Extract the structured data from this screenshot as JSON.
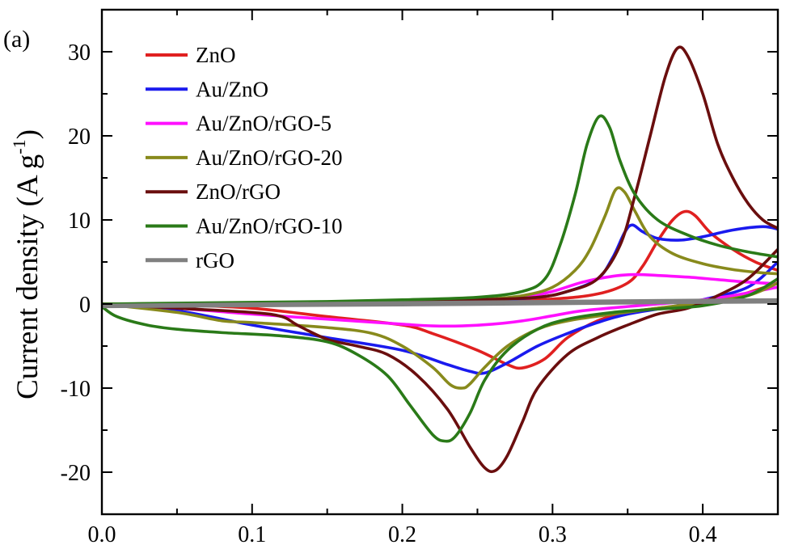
{
  "chart_data": {
    "type": "line",
    "panel_label": "(a)",
    "title": "",
    "xlabel": "",
    "ylabel_main": "Current density (A g",
    "ylabel_sup": "-1",
    "ylabel_close": ")",
    "xlim": [
      0.0,
      0.45
    ],
    "ylim": [
      -25,
      35
    ],
    "x_ticks": [
      0.0,
      0.1,
      0.2,
      0.3,
      0.4
    ],
    "x_tick_labels": [
      "0.0",
      "0.1",
      "0.2",
      "0.3",
      "0.4"
    ],
    "y_ticks": [
      -20,
      -10,
      0,
      10,
      20,
      30
    ],
    "y_tick_labels": [
      "-20",
      "-10",
      "0",
      "10",
      "20",
      "30"
    ],
    "grid": false,
    "legend_position": "top-left",
    "series": [
      {
        "name": "ZnO",
        "color": "#e02020",
        "forward": [
          [
            0,
            0
          ],
          [
            0.05,
            0
          ],
          [
            0.1,
            0.05
          ],
          [
            0.15,
            0.1
          ],
          [
            0.2,
            0.2
          ],
          [
            0.25,
            0.3
          ],
          [
            0.3,
            0.6
          ],
          [
            0.33,
            1.2
          ],
          [
            0.35,
            2.5
          ],
          [
            0.36,
            4.5
          ],
          [
            0.37,
            7.5
          ],
          [
            0.38,
            10
          ],
          [
            0.388,
            11
          ],
          [
            0.395,
            10.5
          ],
          [
            0.405,
            8.5
          ],
          [
            0.42,
            6.5
          ],
          [
            0.435,
            5
          ],
          [
            0.45,
            4
          ]
        ],
        "reverse": [
          [
            0.45,
            2.5
          ],
          [
            0.42,
            0.8
          ],
          [
            0.4,
            0.1
          ],
          [
            0.37,
            -0.5
          ],
          [
            0.35,
            -1
          ],
          [
            0.33,
            -2
          ],
          [
            0.31,
            -4
          ],
          [
            0.295,
            -6.5
          ],
          [
            0.28,
            -7.6
          ],
          [
            0.27,
            -7.2
          ],
          [
            0.25,
            -5.5
          ],
          [
            0.22,
            -3.5
          ],
          [
            0.2,
            -2.5
          ],
          [
            0.15,
            -1.5
          ],
          [
            0.1,
            -0.5
          ],
          [
            0.05,
            -0.1
          ],
          [
            0,
            0
          ]
        ]
      },
      {
        "name": "Au/ZnO",
        "color": "#1a1aee",
        "forward": [
          [
            0,
            0
          ],
          [
            0.05,
            0
          ],
          [
            0.1,
            0.05
          ],
          [
            0.15,
            0.1
          ],
          [
            0.2,
            0.2
          ],
          [
            0.25,
            0.4
          ],
          [
            0.29,
            0.8
          ],
          [
            0.31,
            1.5
          ],
          [
            0.33,
            3
          ],
          [
            0.34,
            5.5
          ],
          [
            0.348,
            8.5
          ],
          [
            0.353,
            9.4
          ],
          [
            0.36,
            8.6
          ],
          [
            0.37,
            7.8
          ],
          [
            0.385,
            7.6
          ],
          [
            0.4,
            8
          ],
          [
            0.42,
            8.8
          ],
          [
            0.44,
            9.2
          ],
          [
            0.45,
            8.9
          ]
        ],
        "reverse": [
          [
            0.45,
            5
          ],
          [
            0.43,
            2
          ],
          [
            0.4,
            0.5
          ],
          [
            0.38,
            -0.3
          ],
          [
            0.35,
            -1.2
          ],
          [
            0.33,
            -2.2
          ],
          [
            0.31,
            -3.5
          ],
          [
            0.29,
            -5
          ],
          [
            0.27,
            -7
          ],
          [
            0.255,
            -8.2
          ],
          [
            0.245,
            -8
          ],
          [
            0.23,
            -7.2
          ],
          [
            0.2,
            -5.5
          ],
          [
            0.15,
            -4
          ],
          [
            0.1,
            -2.5
          ],
          [
            0.05,
            -0.8
          ],
          [
            0,
            0
          ]
        ]
      },
      {
        "name": "Au/ZnO/rGO-5",
        "color": "#ff10ff",
        "forward": [
          [
            0,
            0
          ],
          [
            0.05,
            0.05
          ],
          [
            0.1,
            0.1
          ],
          [
            0.15,
            0.2
          ],
          [
            0.2,
            0.3
          ],
          [
            0.25,
            0.5
          ],
          [
            0.28,
            0.8
          ],
          [
            0.3,
            1.5
          ],
          [
            0.32,
            2.6
          ],
          [
            0.34,
            3.3
          ],
          [
            0.355,
            3.5
          ],
          [
            0.37,
            3.4
          ],
          [
            0.39,
            3.2
          ],
          [
            0.41,
            2.9
          ],
          [
            0.43,
            2.6
          ],
          [
            0.45,
            2.4
          ]
        ],
        "reverse": [
          [
            0.45,
            2
          ],
          [
            0.42,
            1
          ],
          [
            0.4,
            0.5
          ],
          [
            0.37,
            0
          ],
          [
            0.35,
            -0.3
          ],
          [
            0.32,
            -0.8
          ],
          [
            0.3,
            -1.4
          ],
          [
            0.28,
            -2
          ],
          [
            0.26,
            -2.4
          ],
          [
            0.24,
            -2.6
          ],
          [
            0.22,
            -2.6
          ],
          [
            0.2,
            -2.4
          ],
          [
            0.15,
            -1.8
          ],
          [
            0.1,
            -1.2
          ],
          [
            0.05,
            -0.5
          ],
          [
            0,
            0
          ]
        ]
      },
      {
        "name": "Au/ZnO/rGO-20",
        "color": "#888a1c",
        "forward": [
          [
            0,
            0
          ],
          [
            0.05,
            0.05
          ],
          [
            0.1,
            0.1
          ],
          [
            0.15,
            0.2
          ],
          [
            0.2,
            0.3
          ],
          [
            0.25,
            0.5
          ],
          [
            0.28,
            1
          ],
          [
            0.3,
            2
          ],
          [
            0.315,
            4
          ],
          [
            0.325,
            6.5
          ],
          [
            0.335,
            10.5
          ],
          [
            0.342,
            13.6
          ],
          [
            0.348,
            13.3
          ],
          [
            0.355,
            11
          ],
          [
            0.365,
            8
          ],
          [
            0.38,
            6
          ],
          [
            0.4,
            4.8
          ],
          [
            0.42,
            4.1
          ],
          [
            0.44,
            3.7
          ],
          [
            0.45,
            3.6
          ]
        ],
        "reverse": [
          [
            0.45,
            2.5
          ],
          [
            0.43,
            1
          ],
          [
            0.4,
            0.2
          ],
          [
            0.37,
            -0.5
          ],
          [
            0.34,
            -1.2
          ],
          [
            0.31,
            -2
          ],
          [
            0.29,
            -3
          ],
          [
            0.27,
            -5
          ],
          [
            0.255,
            -7.5
          ],
          [
            0.245,
            -9.5
          ],
          [
            0.24,
            -10
          ],
          [
            0.232,
            -9.6
          ],
          [
            0.22,
            -7.5
          ],
          [
            0.2,
            -5
          ],
          [
            0.18,
            -3.5
          ],
          [
            0.15,
            -2.8
          ],
          [
            0.1,
            -2.2
          ],
          [
            0.08,
            -2
          ],
          [
            0.05,
            -1
          ],
          [
            0,
            0
          ]
        ]
      },
      {
        "name": "ZnO/rGO",
        "color": "#6a0e0e",
        "forward": [
          [
            0,
            0
          ],
          [
            0.05,
            0.05
          ],
          [
            0.1,
            0.1
          ],
          [
            0.15,
            0.2
          ],
          [
            0.2,
            0.3
          ],
          [
            0.25,
            0.5
          ],
          [
            0.29,
            0.8
          ],
          [
            0.31,
            1.5
          ],
          [
            0.33,
            3
          ],
          [
            0.345,
            7
          ],
          [
            0.355,
            13
          ],
          [
            0.365,
            20
          ],
          [
            0.375,
            27
          ],
          [
            0.383,
            30.4
          ],
          [
            0.39,
            29.5
          ],
          [
            0.4,
            25
          ],
          [
            0.41,
            19
          ],
          [
            0.42,
            15
          ],
          [
            0.43,
            12
          ],
          [
            0.44,
            10
          ],
          [
            0.45,
            9
          ]
        ],
        "reverse": [
          [
            0.45,
            6.5
          ],
          [
            0.43,
            3
          ],
          [
            0.41,
            1
          ],
          [
            0.39,
            -0.5
          ],
          [
            0.37,
            -1.2
          ],
          [
            0.35,
            -2.5
          ],
          [
            0.33,
            -4
          ],
          [
            0.31,
            -6
          ],
          [
            0.29,
            -10
          ],
          [
            0.28,
            -14
          ],
          [
            0.27,
            -18
          ],
          [
            0.262,
            -19.8
          ],
          [
            0.255,
            -19.5
          ],
          [
            0.245,
            -17
          ],
          [
            0.23,
            -12.5
          ],
          [
            0.21,
            -8.5
          ],
          [
            0.19,
            -6
          ],
          [
            0.17,
            -5
          ],
          [
            0.15,
            -4.2
          ],
          [
            0.13,
            -2.5
          ],
          [
            0.12,
            -1.5
          ],
          [
            0.1,
            -1
          ],
          [
            0.05,
            -0.5
          ],
          [
            0,
            0
          ]
        ]
      },
      {
        "name": "Au/ZnO/rGO-10",
        "color": "#2a7a18",
        "forward": [
          [
            0,
            0
          ],
          [
            0.05,
            0.1
          ],
          [
            0.1,
            0.2
          ],
          [
            0.15,
            0.3
          ],
          [
            0.2,
            0.5
          ],
          [
            0.25,
            0.8
          ],
          [
            0.28,
            1.5
          ],
          [
            0.295,
            3
          ],
          [
            0.305,
            7
          ],
          [
            0.315,
            13
          ],
          [
            0.323,
            19
          ],
          [
            0.331,
            22.3
          ],
          [
            0.338,
            21
          ],
          [
            0.345,
            17
          ],
          [
            0.355,
            13
          ],
          [
            0.37,
            10
          ],
          [
            0.39,
            8.2
          ],
          [
            0.41,
            7
          ],
          [
            0.43,
            6.2
          ],
          [
            0.45,
            5.6
          ]
        ],
        "reverse": [
          [
            0.45,
            3
          ],
          [
            0.43,
            1
          ],
          [
            0.4,
            -0.2
          ],
          [
            0.37,
            -0.6
          ],
          [
            0.34,
            -1
          ],
          [
            0.31,
            -1.8
          ],
          [
            0.29,
            -3
          ],
          [
            0.27,
            -5.5
          ],
          [
            0.255,
            -9
          ],
          [
            0.245,
            -13
          ],
          [
            0.235,
            -15.8
          ],
          [
            0.228,
            -16.3
          ],
          [
            0.22,
            -15.5
          ],
          [
            0.205,
            -12
          ],
          [
            0.19,
            -8.5
          ],
          [
            0.17,
            -6
          ],
          [
            0.15,
            -4.5
          ],
          [
            0.12,
            -3.8
          ],
          [
            0.08,
            -3.4
          ],
          [
            0.05,
            -3
          ],
          [
            0.03,
            -2.5
          ],
          [
            0.01,
            -1.5
          ],
          [
            0,
            -0.3
          ]
        ]
      },
      {
        "name": "rGO",
        "color": "#808080",
        "forward": [
          [
            0,
            -0.2
          ],
          [
            0.1,
            -0.05
          ],
          [
            0.2,
            0.1
          ],
          [
            0.3,
            0.25
          ],
          [
            0.4,
            0.4
          ],
          [
            0.45,
            0.45
          ]
        ],
        "reverse": [
          [
            0.45,
            0.3
          ],
          [
            0.4,
            0.25
          ],
          [
            0.3,
            0.1
          ],
          [
            0.2,
            -0.05
          ],
          [
            0.1,
            -0.15
          ],
          [
            0,
            -0.25
          ]
        ]
      }
    ]
  }
}
